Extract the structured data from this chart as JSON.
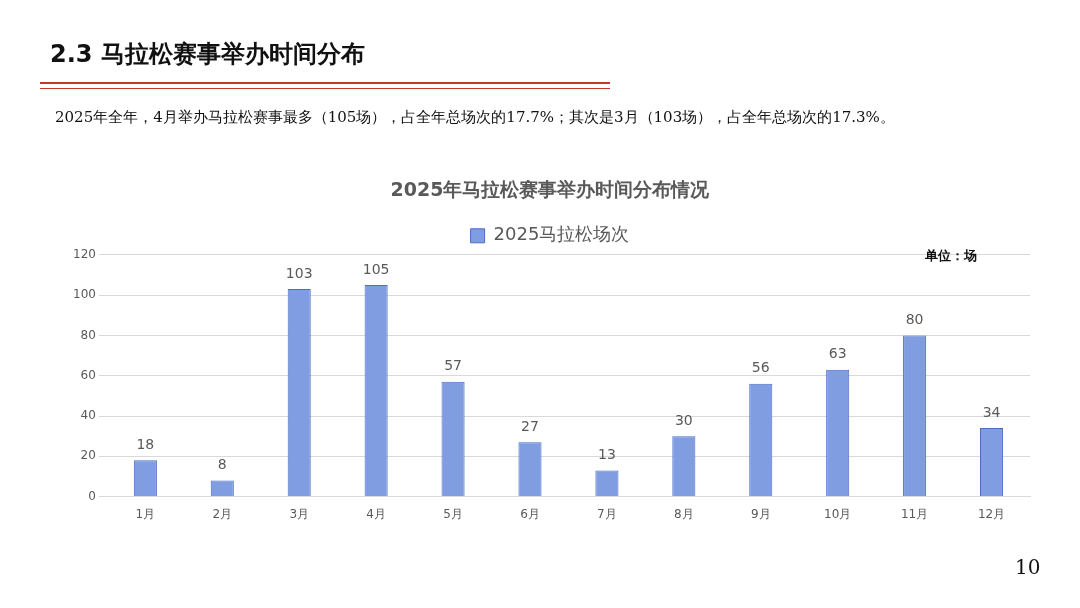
{
  "chart_data": {
    "type": "bar",
    "title": "2025年马拉松赛事举办时间分布情况",
    "categories": [
      "1月",
      "2月",
      "3月",
      "4月",
      "5月",
      "6月",
      "7月",
      "8月",
      "9月",
      "10月",
      "11月",
      "12月"
    ],
    "series": [
      {
        "name": "2025马拉松场次",
        "color": "#7f9de0",
        "values": [
          18,
          8,
          103,
          105,
          57,
          27,
          13,
          30,
          56,
          63,
          80,
          34
        ]
      }
    ],
    "ylim": [
      0,
      120
    ],
    "yticks": [
      0,
      20,
      40,
      60,
      80,
      100,
      120
    ],
    "grid": "y",
    "legend": "top",
    "data_labels": true,
    "annotations": [
      "2.3 马拉松赛事举办时间分布",
      "2025年全年，4月举办马拉松赛事最多（105场），占全年总场次的17.7%；其次是3月（103场），占全年总场次的17.3%。",
      "单位：场",
      "10"
    ]
  }
}
